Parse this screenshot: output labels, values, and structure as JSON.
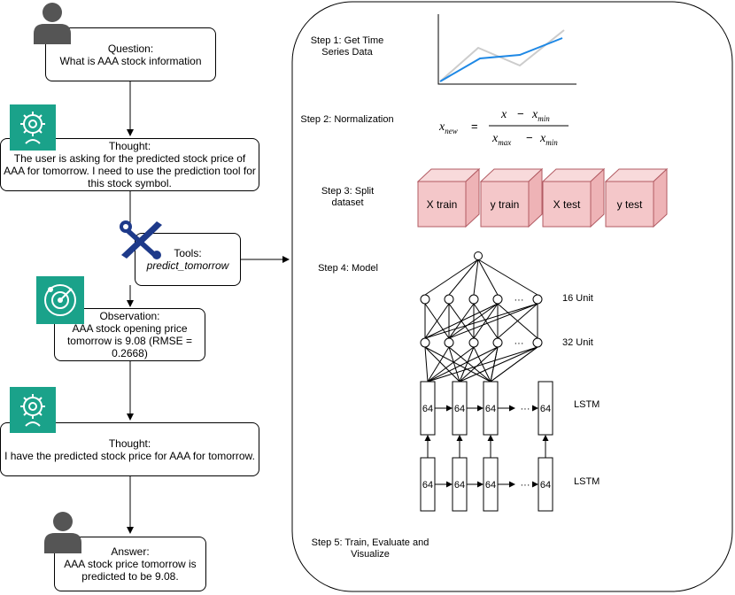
{
  "flow": {
    "question": {
      "label": "Question:",
      "text": "What is AAA stock information"
    },
    "thought1": {
      "label": "Thought:",
      "text": "The user is asking for the predicted stock price of AAA for tomorrow. I need to use the prediction tool for this stock symbol."
    },
    "tools": {
      "label": "Tools:",
      "text": "predict_tomorrow"
    },
    "observation": {
      "label": "Observation:",
      "text": "AAA stock opening price tomorrow is 9.08 (RMSE = 0.2668)"
    },
    "thought2": {
      "label": "Thought:",
      "text": "I have the predicted stock price for AAA for tomorrow."
    },
    "answer": {
      "label": "Answer:",
      "text": "AAA stock price tomorrow is predicted to be 9.08."
    }
  },
  "steps": {
    "step1": "Step 1: Get Time Series Data",
    "step2": "Step 2: Normalization",
    "step3": "Step 3: Split dataset",
    "step4": "Step 4: Model",
    "step5": "Step 5: Train, Evaluate and Visualize"
  },
  "split": [
    "X train",
    "y train",
    "X test",
    "y test"
  ],
  "model": {
    "dense1": "16 Unit",
    "dense2": "32 Unit",
    "lstm1": "LSTM",
    "lstm2": "LSTM",
    "cell": "64",
    "ellipsis": "···"
  },
  "formula": {
    "x": "x",
    "new": "new",
    "min": "min",
    "max": "max",
    "eq": "=",
    "minus": "−"
  },
  "colors": {
    "accent": "#1aa28a",
    "tool": "#1e3a8a",
    "person": "#555555",
    "cube_front": "#f4c7c9",
    "cube_top": "#f8dadb",
    "cube_side": "#eeb3b6",
    "cube_stroke": "#b25b63",
    "chart_line": "#1e88e5",
    "chart_gray": "#cccccc"
  },
  "icons": [
    "person-icon",
    "brain-gear-icon",
    "tools-icon",
    "radar-icon"
  ]
}
